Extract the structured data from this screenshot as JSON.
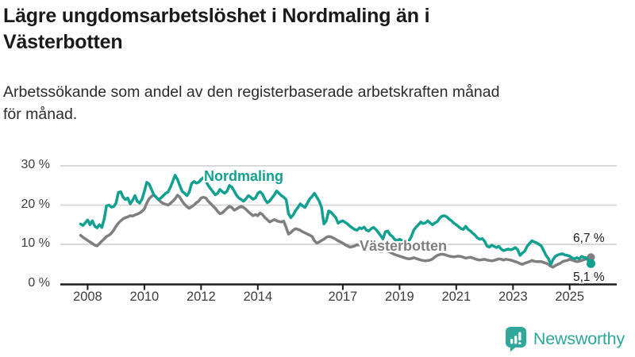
{
  "header": {
    "title_lines": [
      "Lägre ungdomsarbetslöshet i Nordmaling än i",
      "Västerbotten"
    ],
    "subtitle_lines": [
      "Arbetssökande som andel av den registerbaserade arbetskraften månad",
      "för månad."
    ]
  },
  "colors": {
    "nordmaling": "#12a191",
    "vasterbotten": "#7f7f7f",
    "grid": "#d9d9d9",
    "axis": "#1a1a1a",
    "logo": "#31a79c"
  },
  "logo": {
    "text": "Newsworthy"
  },
  "chart_data": {
    "type": "line",
    "title": "Lägre ungdomsarbetslöshet i Nordmaling än i Västerbotten",
    "subtitle": "Arbetssökande som andel av den registerbaserade arbetskraften månad för månad.",
    "unit": "%",
    "frequency": "monthly",
    "x_start": "2007-10",
    "x_end": "2025-10",
    "ylim": [
      0,
      30
    ],
    "grid": "horizontal",
    "legend": "inline-labels",
    "y_ticks": [
      0,
      10,
      20,
      30
    ],
    "y_tick_labels": [
      "0 %",
      "10 %",
      "20 %",
      "30 %"
    ],
    "x_tick_years": [
      2008,
      2010,
      2012,
      2014,
      2017,
      2019,
      2021,
      2023,
      2025
    ],
    "series": [
      {
        "name": "Nordmaling",
        "color": "#12a191",
        "last_value_label": "5,1 %",
        "values": [
          15.2,
          14.8,
          15.5,
          16.2,
          15.0,
          16.0,
          14.6,
          14.2,
          15.0,
          14.3,
          16.5,
          19.8,
          20.0,
          19.5,
          19.6,
          20.5,
          23.2,
          23.4,
          22.0,
          21.4,
          21.8,
          20.3,
          21.2,
          22.4,
          21.0,
          20.5,
          21.5,
          23.5,
          25.8,
          25.4,
          24.0,
          22.6,
          22.0,
          21.4,
          21.8,
          22.4,
          23.0,
          23.3,
          24.5,
          26.0,
          27.6,
          26.5,
          25.0,
          23.5,
          23.0,
          22.4,
          23.3,
          25.5,
          26.0,
          25.6,
          25.8,
          26.5,
          27.0,
          26.2,
          25.0,
          24.2,
          23.4,
          22.6,
          23.0,
          24.0,
          23.4,
          23.0,
          23.6,
          25.0,
          24.6,
          23.6,
          22.5,
          21.8,
          21.4,
          21.0,
          21.6,
          22.4,
          22.0,
          21.5,
          21.8,
          23.0,
          23.4,
          22.8,
          21.5,
          20.6,
          21.0,
          21.8,
          22.6,
          23.6,
          23.0,
          22.4,
          22.0,
          21.4,
          17.8,
          16.8,
          17.5,
          18.6,
          19.4,
          20.3,
          19.8,
          19.4,
          20.5,
          21.6,
          22.2,
          23.0,
          22.0,
          21.0,
          19.4,
          15.2,
          16.0,
          18.5,
          18.2,
          17.5,
          16.8,
          15.4,
          15.8,
          16.0,
          15.6,
          15.2,
          14.6,
          14.2,
          13.8,
          13.6,
          14.2,
          14.0,
          14.4,
          13.6,
          13.4,
          14.0,
          14.3,
          13.8,
          13.0,
          12.2,
          11.4,
          13.2,
          13.4,
          12.4,
          12.0,
          11.2,
          10.9,
          11.3,
          11.0,
          10.7,
          10.6,
          10.9,
          12.0,
          13.6,
          14.4,
          15.0,
          15.7,
          15.3,
          15.5,
          16.0,
          15.4,
          15.0,
          15.5,
          15.8,
          16.7,
          17.2,
          17.3,
          17.0,
          16.4,
          16.0,
          15.4,
          15.0,
          14.5,
          14.0,
          13.8,
          14.6,
          13.8,
          13.4,
          12.8,
          12.3,
          11.6,
          11.3,
          11.5,
          10.8,
          9.6,
          9.3,
          9.8,
          9.5,
          9.2,
          9.5,
          8.8,
          8.4,
          8.6,
          8.8,
          8.6,
          8.8,
          9.2,
          8.6,
          7.2,
          7.8,
          8.3,
          9.5,
          10.2,
          10.9,
          10.6,
          10.4,
          10.0,
          9.6,
          8.4,
          7.2,
          6.4,
          4.9,
          6.2,
          7.0,
          7.3,
          7.5,
          7.6,
          7.3,
          7.2,
          7.0,
          6.6,
          6.3,
          6.6,
          6.3,
          6.9,
          6.7,
          6.6,
          5.8,
          5.1
        ]
      },
      {
        "name": "Västerbotten",
        "color": "#7f7f7f",
        "last_value_label": "6,7 %",
        "values": [
          12.3,
          11.8,
          11.4,
          11.0,
          10.6,
          10.2,
          9.8,
          9.6,
          10.2,
          10.8,
          11.4,
          12.0,
          12.3,
          12.8,
          13.6,
          14.6,
          15.4,
          16.0,
          16.5,
          16.8,
          17.0,
          17.3,
          17.2,
          17.5,
          17.7,
          18.0,
          18.4,
          19.0,
          20.5,
          21.6,
          22.2,
          22.6,
          22.0,
          21.4,
          20.8,
          20.4,
          20.2,
          20.0,
          20.4,
          21.0,
          21.6,
          22.5,
          22.0,
          21.0,
          20.2,
          19.6,
          19.2,
          19.6,
          20.0,
          20.6,
          21.0,
          21.8,
          22.0,
          21.8,
          21.0,
          20.4,
          19.8,
          19.2,
          18.4,
          17.8,
          18.0,
          18.6,
          19.2,
          19.7,
          19.4,
          18.7,
          19.0,
          19.4,
          19.7,
          19.4,
          18.9,
          18.3,
          17.8,
          17.3,
          17.6,
          17.3,
          18.0,
          17.6,
          16.8,
          16.3,
          15.7,
          16.0,
          16.3,
          16.0,
          15.8,
          15.7,
          15.9,
          14.3,
          12.6,
          13.0,
          13.6,
          14.0,
          13.8,
          13.6,
          13.2,
          12.9,
          12.6,
          12.3,
          12.0,
          10.9,
          10.3,
          10.6,
          11.0,
          11.3,
          11.8,
          12.0,
          11.9,
          11.6,
          11.3,
          10.9,
          10.6,
          10.3,
          9.9,
          9.6,
          9.3,
          9.4,
          9.6,
          9.9,
          9.8,
          9.6,
          9.3,
          8.9,
          9.0,
          9.2,
          9.0,
          8.7,
          8.4,
          8.2,
          8.3,
          8.5,
          8.3,
          8.0,
          7.7,
          7.4,
          7.2,
          7.0,
          6.8,
          6.6,
          6.4,
          6.3,
          6.4,
          6.6,
          6.4,
          6.2,
          6.0,
          5.9,
          5.8,
          5.9,
          6.0,
          6.3,
          6.8,
          7.2,
          7.4,
          7.5,
          7.4,
          7.2,
          7.0,
          6.9,
          6.8,
          6.9,
          7.0,
          6.9,
          6.7,
          6.5,
          6.6,
          6.7,
          6.5,
          6.3,
          6.1,
          6.0,
          6.1,
          6.2,
          6.0,
          5.9,
          5.8,
          5.9,
          6.1,
          6.3,
          6.2,
          6.0,
          6.2,
          6.1,
          6.0,
          5.8,
          5.6,
          5.4,
          5.1,
          4.9,
          5.2,
          5.4,
          5.6,
          5.9,
          5.7,
          5.6,
          5.6,
          5.6,
          5.4,
          5.2,
          4.9,
          4.4,
          4.2,
          4.6,
          4.9,
          5.2,
          5.6,
          5.8,
          5.9,
          6.2,
          6.0,
          5.8,
          5.6,
          5.7,
          5.9,
          6.1,
          6.3,
          6.5,
          6.7
        ]
      }
    ]
  }
}
